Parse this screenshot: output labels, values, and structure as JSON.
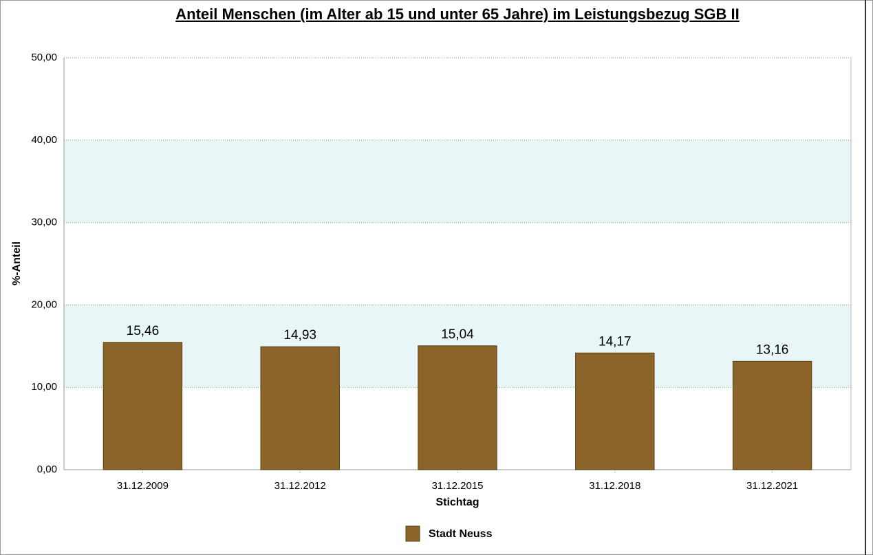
{
  "chart_data": {
    "type": "bar",
    "title": "Anteil Menschen (im Alter ab 15 und unter 65 Jahre) im Leistungsbezug SGB II",
    "x_label": "Stichtag",
    "y_label": "%-Anteil",
    "categories": [
      "31.12.2009",
      "31.12.2012",
      "31.12.2015",
      "31.12.2018",
      "31.12.2021"
    ],
    "series": [
      {
        "name": "Stadt Neuss",
        "color": "#8a6428",
        "values": [
          15.46,
          14.93,
          15.04,
          14.17,
          13.16
        ],
        "value_labels": [
          "15,46",
          "14,93",
          "15,04",
          "14,17",
          "13,16"
        ]
      }
    ],
    "ylim": [
      0,
      50
    ],
    "yticks": [
      {
        "value": 0,
        "label": "0,00"
      },
      {
        "value": 10,
        "label": "10,00"
      },
      {
        "value": 20,
        "label": "20,00"
      },
      {
        "value": 30,
        "label": "30,00"
      },
      {
        "value": 40,
        "label": "40,00"
      },
      {
        "value": 50,
        "label": "50,00"
      }
    ],
    "grid": true,
    "band_color": "#e8f6f8",
    "legend": "bottom"
  }
}
